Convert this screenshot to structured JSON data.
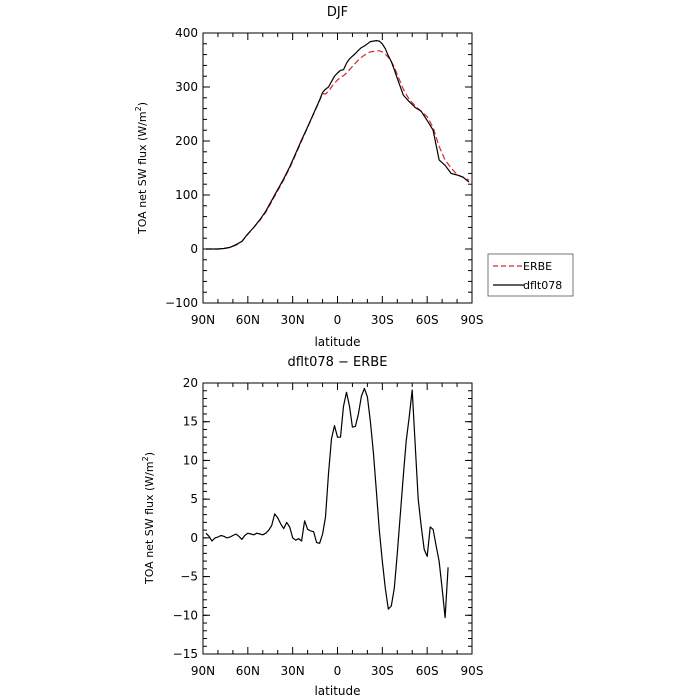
{
  "chart_data": [
    {
      "type": "line",
      "title": "DJF",
      "xlabel": "latitude",
      "ylabel": "TOA net SW flux (W/m",
      "ylabel_sup": "2",
      "ylabel_tail": ")",
      "xlim": [
        90,
        -90
      ],
      "ylim": [
        -100,
        400
      ],
      "xticks": [
        90,
        60,
        30,
        0,
        -30,
        -60,
        -90
      ],
      "xticklabels": [
        "90N",
        "60N",
        "30N",
        "0",
        "30S",
        "60S",
        "90S"
      ],
      "yticks": [
        -100,
        0,
        100,
        200,
        300,
        400
      ],
      "yticklabels": [
        "−100",
        "0",
        "100",
        "200",
        "300",
        "400"
      ],
      "legend": "right",
      "series": [
        {
          "name": "ERBE",
          "color": "#d62728",
          "dash": "dashed",
          "x": [
            88,
            84,
            80,
            76,
            72,
            68,
            64,
            60,
            56,
            52,
            48,
            44,
            40,
            36,
            32,
            28,
            24,
            20,
            16,
            12,
            10,
            8,
            6,
            4,
            2,
            0,
            -2,
            -4,
            -6,
            -8,
            -10,
            -12,
            -14,
            -16,
            -18,
            -20,
            -22,
            -24,
            -26,
            -28,
            -30,
            -32,
            -34,
            -36,
            -38,
            -40,
            -44,
            -48,
            -52,
            -56,
            -60,
            -64,
            -68,
            -72,
            -76,
            -80,
            -84,
            -88
          ],
          "values": [
            0,
            0,
            0,
            1,
            3,
            7,
            14,
            27,
            40,
            53,
            68,
            88,
            108,
            128,
            150,
            175,
            200,
            225,
            250,
            275,
            288,
            287,
            292,
            300,
            307,
            313,
            318,
            321,
            326,
            332,
            338,
            344,
            350,
            355,
            359,
            362,
            365,
            366,
            367,
            367,
            365,
            361,
            355,
            347,
            337,
            323,
            296,
            277,
            265,
            255,
            245,
            225,
            190,
            165,
            150,
            138,
            133,
            128
          ]
        },
        {
          "name": "dflt078",
          "color": "#000000",
          "dash": "solid",
          "x": [
            88,
            84,
            80,
            76,
            72,
            68,
            64,
            60,
            56,
            52,
            48,
            44,
            40,
            36,
            32,
            28,
            24,
            20,
            16,
            12,
            10,
            8,
            6,
            4,
            2,
            0,
            -2,
            -4,
            -6,
            -8,
            -10,
            -12,
            -14,
            -16,
            -18,
            -20,
            -22,
            -24,
            -26,
            -28,
            -30,
            -32,
            -34,
            -36,
            -38,
            -40,
            -44,
            -48,
            -52,
            -56,
            -60,
            -64,
            -68,
            -72,
            -76,
            -80,
            -84,
            -88
          ],
          "values": [
            0,
            0,
            0,
            1,
            3,
            8,
            14,
            28,
            40,
            54,
            70,
            90,
            110,
            130,
            152,
            177,
            202,
            226,
            251,
            276,
            290,
            296,
            300,
            310,
            320,
            326,
            331,
            332,
            344,
            352,
            357,
            362,
            368,
            373,
            376,
            380,
            384,
            385,
            386,
            385,
            380,
            371,
            358,
            347,
            332,
            316,
            285,
            273,
            262,
            255,
            238,
            220,
            165,
            155,
            140,
            137,
            133,
            124
          ]
        }
      ]
    },
    {
      "type": "line",
      "title": "dflt078 − ERBE",
      "xlabel": "latitude",
      "ylabel": "TOA net SW flux (W/m",
      "ylabel_sup": "2",
      "ylabel_tail": ")",
      "xlim": [
        90,
        -90
      ],
      "ylim": [
        -15,
        20
      ],
      "xticks": [
        90,
        60,
        30,
        0,
        -30,
        -60,
        -90
      ],
      "xticklabels": [
        "90N",
        "60N",
        "30N",
        "0",
        "30S",
        "60S",
        "90S"
      ],
      "yticks": [
        -15,
        -10,
        -5,
        0,
        5,
        10,
        15,
        20
      ],
      "yticklabels": [
        "−15",
        "−10",
        "−5",
        "0",
        "5",
        "10",
        "15",
        "20"
      ],
      "series": [
        {
          "color": "#000000",
          "x": [
            88,
            86,
            84,
            82,
            80,
            78,
            76,
            74,
            72,
            70,
            68,
            66,
            64,
            62,
            60,
            58,
            56,
            54,
            52,
            50,
            48,
            46,
            44,
            42,
            40,
            38,
            36,
            34,
            32,
            30,
            28,
            26,
            24,
            22,
            20,
            18,
            16,
            14,
            12,
            10,
            8,
            6,
            4,
            2,
            0,
            -2,
            -4,
            -6,
            -8,
            -10,
            -12,
            -14,
            -16,
            -18,
            -20,
            -22,
            -24,
            -26,
            -28,
            -30,
            -32,
            -34,
            -36,
            -38,
            -40,
            -42,
            -44,
            -46,
            -48,
            -50,
            -52,
            -54,
            -56,
            -58,
            -60,
            -62,
            -64,
            -66,
            -68,
            -70,
            -72,
            -74,
            -76,
            -78,
            -80,
            -82,
            -84,
            -86,
            -88
          ],
          "values": [
            0.6,
            0.2,
            -0.4,
            0.0,
            0.1,
            0.3,
            0.2,
            0.0,
            0.1,
            0.3,
            0.5,
            0.2,
            -0.2,
            0.3,
            0.6,
            0.5,
            0.4,
            0.6,
            0.5,
            0.4,
            0.6,
            1.0,
            1.6,
            3.1,
            2.6,
            1.8,
            1.2,
            2.0,
            1.4,
            0.0,
            -0.3,
            -0.1,
            -0.4,
            2.2,
            1.1,
            0.9,
            0.8,
            -0.6,
            -0.7,
            0.5,
            2.7,
            8.3,
            12.8,
            14.5,
            13.0,
            13.0,
            17.0,
            18.8,
            17.0,
            14.3,
            14.4,
            16.0,
            18.3,
            19.3,
            18.2,
            15.0,
            11.0,
            6.0,
            1.0,
            -3.0,
            -6.5,
            -9.2,
            -8.8,
            -6.5,
            -2.0,
            3.0,
            8.0,
            12.5,
            15.6,
            19.1,
            12.0,
            5.0,
            1.5,
            -1.5,
            -2.4,
            1.4,
            1.1,
            -1.0,
            -3.0,
            -6.5,
            -10.3,
            -3.8,
            null,
            null,
            null,
            null,
            null,
            null,
            null
          ]
        }
      ]
    }
  ]
}
